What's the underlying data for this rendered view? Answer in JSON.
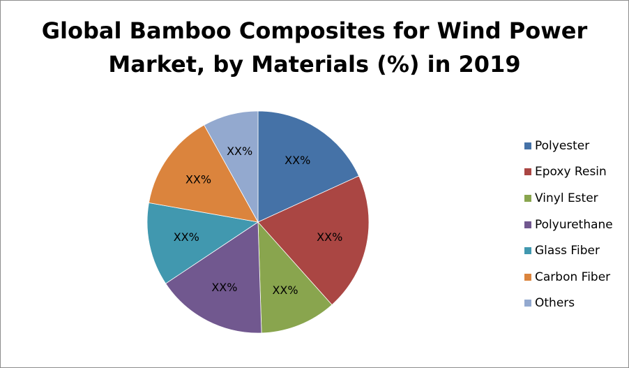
{
  "chart_data": {
    "type": "pie",
    "title_lines": [
      "Global Bamboo Composites for Wind Power",
      "Market, by Materials (%) in 2019"
    ],
    "categories": [
      "Polyester",
      "Epoxy Resin",
      "Vinyl Ester",
      "Polyurethane",
      "Glass Fiber",
      "Carbon Fiber",
      "Others"
    ],
    "values": [
      18,
      20,
      11,
      16,
      12,
      14,
      8
    ],
    "data_labels": [
      "XX%",
      "XX%",
      "XX%",
      "XX%",
      "XX%",
      "XX%",
      "XX%"
    ],
    "colors": [
      "#4572A7",
      "#AA4643",
      "#89A54E",
      "#71588F",
      "#4198AF",
      "#DB843D",
      "#93A9CF"
    ],
    "legend_position": "right",
    "start_angle_deg": 0,
    "direction": "clockwise"
  }
}
